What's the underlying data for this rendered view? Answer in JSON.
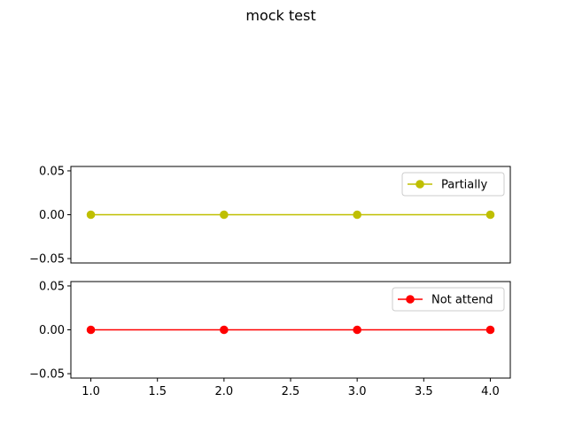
{
  "title": "mock test",
  "chart_data": [
    {
      "type": "line",
      "title": "",
      "xlabel": "",
      "ylabel": "",
      "x": [
        1,
        2,
        3,
        4
      ],
      "series": [
        {
          "name": "Partially",
          "values": [
            0,
            0,
            0,
            0
          ],
          "color": "#bfbf00",
          "marker": "circle"
        }
      ],
      "xlim": [
        0.85,
        4.15
      ],
      "ylim": [
        -0.055,
        0.055
      ],
      "yticks": [
        0.05,
        0.0,
        -0.05
      ],
      "ytick_labels": [
        "0.05",
        "0.00",
        "−0.05"
      ],
      "xticks": [],
      "xtick_labels": [],
      "grid": false,
      "legend": "upper right"
    },
    {
      "type": "line",
      "title": "",
      "xlabel": "",
      "ylabel": "",
      "x": [
        1,
        2,
        3,
        4
      ],
      "series": [
        {
          "name": "Not attend",
          "values": [
            0,
            0,
            0,
            0
          ],
          "color": "#ff0000",
          "marker": "circle"
        }
      ],
      "xlim": [
        0.85,
        4.15
      ],
      "ylim": [
        -0.055,
        0.055
      ],
      "yticks": [
        0.05,
        0.0,
        -0.05
      ],
      "ytick_labels": [
        "0.05",
        "0.00",
        "−0.05"
      ],
      "xticks": [
        1.0,
        1.5,
        2.0,
        2.5,
        3.0,
        3.5,
        4.0
      ],
      "xtick_labels": [
        "1.0",
        "1.5",
        "2.0",
        "2.5",
        "3.0",
        "3.5",
        "4.0"
      ],
      "grid": false,
      "legend": "upper right"
    }
  ]
}
